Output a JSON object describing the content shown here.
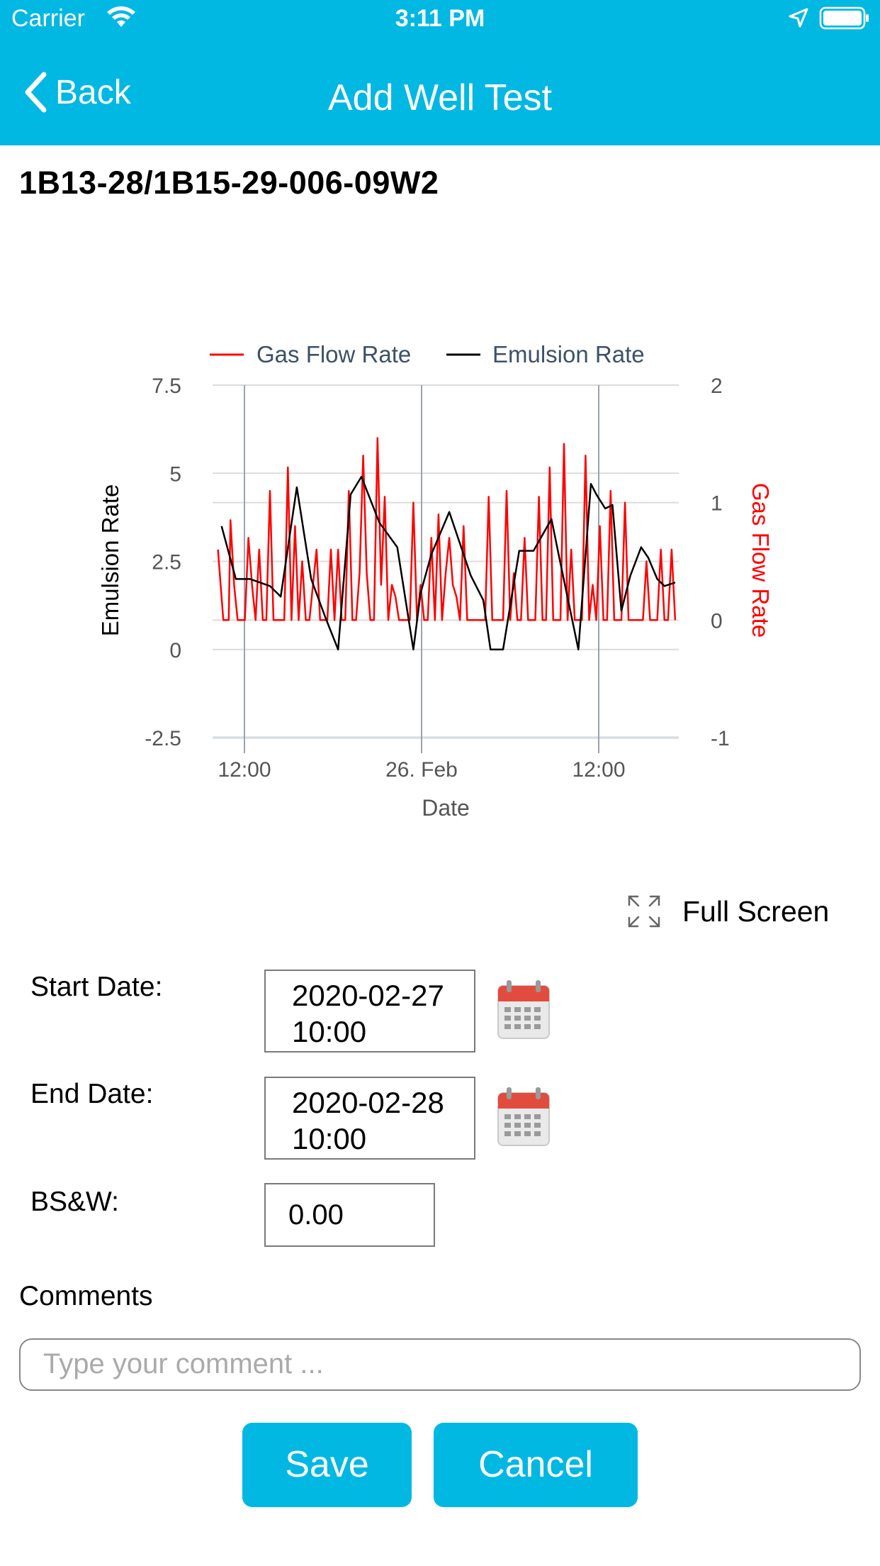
{
  "status_bar": {
    "carrier": "Carrier",
    "time": "3:11 PM"
  },
  "nav": {
    "back_label": "Back",
    "title": "Add Well Test"
  },
  "well_id": "1B13-28/1B15-29-006-09W2",
  "chart_data": {
    "type": "line",
    "title": "",
    "xlabel": "Date",
    "x_tick_labels": [
      "12:00",
      "26. Feb",
      "12:00"
    ],
    "left_axis": {
      "label": "Emulsion Rate",
      "ticks": [
        "7.5",
        "5",
        "2.5",
        "0",
        "-2.5"
      ],
      "ylim": [
        -2.5,
        7.5
      ]
    },
    "right_axis": {
      "label": "Gas Flow Rate",
      "ticks": [
        "2",
        "1",
        "0",
        "-1"
      ],
      "ylim": [
        -1,
        2
      ]
    },
    "x_range_hours": [
      0,
      26
    ],
    "legend_position": "top",
    "series": [
      {
        "name": "Gas Flow Rate",
        "color": "#ff0000",
        "axis": "right",
        "x": [
          0.3,
          0.6,
          0.9,
          1.0,
          1.2,
          1.4,
          1.6,
          1.8,
          2.0,
          2.2,
          2.4,
          2.6,
          2.8,
          3.0,
          3.2,
          3.4,
          3.6,
          3.8,
          4.0,
          4.2,
          4.4,
          4.6,
          4.8,
          5.0,
          5.2,
          5.4,
          5.6,
          5.8,
          6.0,
          6.2,
          6.4,
          6.6,
          6.8,
          7.0,
          7.2,
          7.4,
          7.6,
          7.8,
          8.0,
          8.2,
          8.4,
          8.6,
          8.8,
          9.0,
          9.2,
          9.4,
          9.6,
          9.8,
          10.0,
          10.2,
          10.4,
          10.6,
          10.8,
          11.0,
          11.2,
          11.4,
          11.6,
          11.8,
          12.0,
          12.2,
          12.4,
          12.6,
          12.8,
          13.0,
          13.2,
          13.4,
          13.6,
          13.8,
          14.0,
          14.2,
          14.4,
          14.6,
          14.8,
          15.0,
          15.2,
          15.4,
          15.6,
          15.8,
          16.0,
          16.2,
          16.4,
          16.6,
          16.8,
          17.0,
          17.2,
          17.4,
          17.6,
          17.8,
          18.0,
          18.2,
          18.4,
          18.6,
          18.8,
          19.0,
          19.2,
          19.4,
          19.6,
          19.8,
          20.0,
          20.2,
          20.4,
          20.6,
          20.8,
          21.0,
          21.2,
          21.4,
          21.6,
          21.8,
          22.0,
          22.2,
          22.4,
          22.6,
          22.8,
          23.0,
          23.2,
          23.4,
          23.6,
          23.8,
          24.0,
          24.2,
          24.4,
          24.6,
          24.8,
          25.0,
          25.2,
          25.4,
          25.6,
          25.8
        ],
        "values": [
          0.6,
          0.0,
          0.0,
          0.85,
          0.3,
          0.0,
          0.0,
          0.0,
          0.7,
          0.3,
          0.0,
          0.6,
          0.0,
          0.0,
          1.1,
          0.0,
          0.0,
          0.0,
          0.0,
          1.3,
          0.0,
          0.8,
          0.0,
          0.5,
          0.0,
          0.0,
          0.3,
          0.6,
          0.0,
          0.0,
          0.0,
          0.6,
          0.0,
          0.6,
          0.0,
          0.0,
          1.1,
          0.0,
          0.0,
          0.4,
          1.4,
          0.4,
          0.0,
          0.0,
          1.55,
          0.3,
          1.05,
          0.0,
          0.3,
          0.2,
          0.0,
          0.0,
          0.0,
          0.0,
          1.0,
          0.0,
          0.3,
          0.0,
          0.0,
          0.7,
          0.0,
          0.9,
          0.0,
          0.4,
          0.7,
          0.3,
          0.2,
          0.0,
          0.8,
          0.0,
          0.0,
          0.0,
          0.0,
          0.0,
          0.0,
          1.05,
          0.0,
          0.0,
          0.0,
          0.0,
          1.1,
          0.0,
          0.4,
          0.0,
          0.0,
          0.7,
          0.0,
          0.0,
          0.0,
          1.05,
          0.0,
          0.0,
          1.3,
          0.0,
          0.0,
          0.0,
          1.5,
          0.0,
          0.6,
          0.0,
          0.0,
          0.0,
          1.4,
          0.0,
          0.3,
          0.0,
          0.8,
          0.0,
          0.0,
          1.1,
          0.0,
          0.0,
          0.0,
          1.0,
          0.0,
          0.0,
          0.0,
          0.0,
          0.0,
          0.5,
          0.0,
          0.0,
          0.0,
          0.6,
          0.0,
          0.0,
          0.6,
          0.0
        ]
      },
      {
        "name": "Emulsion Rate",
        "color": "#000000",
        "axis": "left",
        "x": [
          0.5,
          1.3,
          2.1,
          3.2,
          3.8,
          4.7,
          5.5,
          6.3,
          7.0,
          7.7,
          8.3,
          9.3,
          10.3,
          11.2,
          11.6,
          12.2,
          13.2,
          14.4,
          15.1,
          15.5,
          16.2,
          17.1,
          17.9,
          18.9,
          19.3,
          20.4,
          21.1,
          21.4,
          21.9,
          22.3,
          22.8,
          23.3,
          23.9,
          24.3,
          24.8,
          25.2,
          25.8
        ],
        "values": [
          3.5,
          2.0,
          2.0,
          1.8,
          1.5,
          4.6,
          2.0,
          0.9,
          0.0,
          4.4,
          4.9,
          3.6,
          2.9,
          0.0,
          1.6,
          2.7,
          3.9,
          2.1,
          1.4,
          0.0,
          0.0,
          2.8,
          2.8,
          3.7,
          2.7,
          0.0,
          4.7,
          4.4,
          4.0,
          4.1,
          1.1,
          2.1,
          2.9,
          2.6,
          2.0,
          1.8,
          1.9
        ]
      }
    ]
  },
  "full_screen_label": "Full Screen",
  "form": {
    "start_label": "Start Date:",
    "start_value": "2020-02-27\n10:00",
    "end_label": "End Date:",
    "end_value": "2020-02-28\n10:00",
    "bsw_label": "BS&W:",
    "bsw_value": "0.00",
    "comments_label": "Comments",
    "comment_placeholder": "Type your comment ..."
  },
  "buttons": {
    "save": "Save",
    "cancel": "Cancel"
  },
  "colors": {
    "header": "#00b8e2",
    "gas": "#ff0000",
    "emulsion": "#000000"
  }
}
